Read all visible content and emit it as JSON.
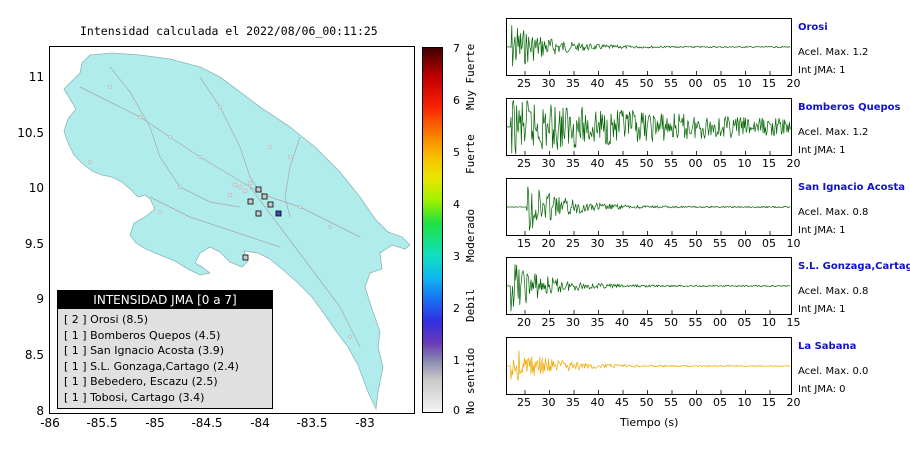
{
  "map": {
    "title": "Intensidad calculada el 2022/08/06_00:11:25",
    "y_ticks": [
      "11",
      "10.5",
      "10",
      "9.5",
      "9",
      "8.5",
      "8"
    ],
    "x_ticks": [
      "-86",
      "-85.5",
      "-85",
      "-84.5",
      "-84",
      "-83.5",
      "-83"
    ],
    "land_color": "#b0ecec"
  },
  "legend": {
    "title": "INTENSIDAD JMA [0 a 7]",
    "items": [
      "[ 2 ]  Orosi (8.5)",
      "[ 1 ]  Bomberos Quepos (4.5)",
      "[ 1 ]  San Ignacio Acosta (3.9)",
      "[ 1 ]  S.L. Gonzaga,Cartago (2.4)",
      "[ 1 ]  Bebedero, Escazu (2.5)",
      "[ 1 ]  Tobosi, Cartago (3.4)"
    ]
  },
  "colorbar": {
    "ticks": [
      "7",
      "6",
      "5",
      "4",
      "3",
      "2",
      "1",
      "0"
    ],
    "labels": [
      "No sentido",
      "Debil",
      "Moderado",
      "Fuerte",
      "Muy Fuerte"
    ]
  },
  "stations": [
    {
      "name": "Orosi",
      "acel": "Acel. Max. 1.2",
      "int": "Int JMA: 1",
      "color": "#006400",
      "ticks": [
        "25",
        "30",
        "35",
        "40",
        "45",
        "50",
        "55",
        "00",
        "05",
        "10",
        "15",
        "20"
      ]
    },
    {
      "name": "Bomberos Quepos",
      "acel": "Acel. Max. 1.2",
      "int": "Int JMA: 1",
      "color": "#006400",
      "ticks": [
        "25",
        "30",
        "35",
        "40",
        "45",
        "50",
        "55",
        "00",
        "05",
        "10",
        "15",
        "20"
      ]
    },
    {
      "name": "San Ignacio Acosta",
      "acel": "Acel. Max. 0.8",
      "int": "Int JMA: 1",
      "color": "#006400",
      "ticks": [
        "15",
        "20",
        "25",
        "30",
        "35",
        "40",
        "45",
        "50",
        "55",
        "00",
        "05",
        "10"
      ]
    },
    {
      "name": "S.L. Gonzaga,Cartago",
      "acel": "Acel. Max. 0.8",
      "int": "Int JMA: 1",
      "color": "#006400",
      "ticks": [
        "20",
        "25",
        "30",
        "35",
        "40",
        "45",
        "50",
        "55",
        "00",
        "05",
        "10",
        "15"
      ]
    },
    {
      "name": "La Sabana",
      "acel": "Acel. Max. 0.0",
      "int": "Int JMA: 0",
      "color": "#f0a800",
      "ticks": [
        "25",
        "30",
        "35",
        "40",
        "45",
        "50",
        "55",
        "00",
        "05",
        "10",
        "15",
        "20"
      ]
    }
  ],
  "xlabel": "Tiempo (s)"
}
